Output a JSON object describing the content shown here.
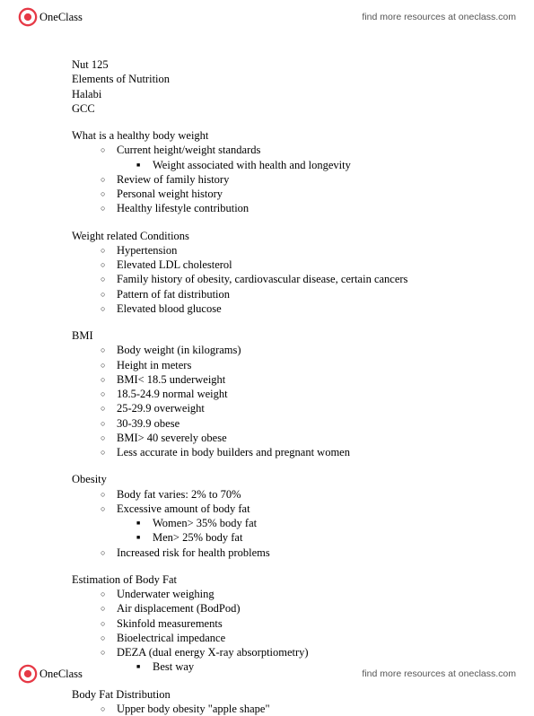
{
  "brand": {
    "name": "OneClass",
    "link_text": "find more resources at oneclass.com"
  },
  "meta": {
    "line1": "Nut 125",
    "line2": "Elements of Nutrition",
    "line3": "Halabi",
    "line4": "GCC"
  },
  "sections": [
    {
      "title": "What is a healthy body weight",
      "items": [
        {
          "text": "Current height/weight standards",
          "sub": [
            {
              "text": "Weight associated with health and longevity"
            }
          ]
        },
        {
          "text": "Review of family history"
        },
        {
          "text": "Personal weight history"
        },
        {
          "text": "Healthy lifestyle contribution"
        }
      ]
    },
    {
      "title": "Weight related Conditions",
      "items": [
        {
          "text": "Hypertension"
        },
        {
          "text": "Elevated LDL cholesterol"
        },
        {
          "text": "Family history of obesity, cardiovascular disease, certain cancers"
        },
        {
          "text": "Pattern of fat distribution"
        },
        {
          "text": "Elevated blood glucose"
        }
      ]
    },
    {
      "title": "BMI",
      "items": [
        {
          "text": "Body weight (in kilograms)"
        },
        {
          "text": "Height in meters"
        },
        {
          "text": "BMI< 18.5 underweight"
        },
        {
          "text": "18.5-24.9 normal weight"
        },
        {
          "text": "25-29.9 overweight"
        },
        {
          "text": "30-39.9 obese"
        },
        {
          "text": "BMI> 40 severely obese"
        },
        {
          "text": "Less accurate in body builders and pregnant women"
        }
      ]
    },
    {
      "title": "Obesity",
      "items": [
        {
          "text": "Body fat varies: 2% to 70%"
        },
        {
          "text": "Excessive amount of body fat",
          "sub": [
            {
              "text": "Women> 35% body fat"
            },
            {
              "text": "Men> 25% body fat"
            }
          ]
        },
        {
          "text": "Increased risk for health problems"
        }
      ]
    },
    {
      "title": "Estimation of Body Fat",
      "items": [
        {
          "text": "Underwater weighing"
        },
        {
          "text": "Air displacement (BodPod)"
        },
        {
          "text": "Skinfold measurements"
        },
        {
          "text": "Bioelectrical impedance"
        },
        {
          "text": "DEZA (dual energy X-ray absorptiometry)",
          "sub": [
            {
              "text": "Best way"
            }
          ]
        }
      ]
    },
    {
      "title": "Body Fat Distribution",
      "items": [
        {
          "text": "Upper body obesity \"apple shape\""
        }
      ]
    }
  ]
}
